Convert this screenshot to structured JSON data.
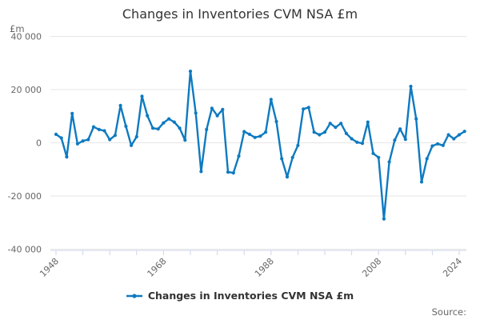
{
  "title": "Changes in Inventories CVM NSA £m",
  "y_axis": {
    "unit_label": "£m",
    "ticks": [
      {
        "value": 40000,
        "label": "40 000"
      },
      {
        "value": 20000,
        "label": "20 000"
      },
      {
        "value": 0,
        "label": "0"
      },
      {
        "value": -20000,
        "label": "-20 000"
      },
      {
        "value": -40000,
        "label": "-40 000"
      }
    ]
  },
  "x_axis": {
    "tick_years": [
      1948,
      1953,
      1958,
      1963,
      1968,
      1973,
      1978,
      1983,
      1988,
      1993,
      1998,
      2003,
      2008,
      2013,
      2018,
      2023
    ],
    "labels": [
      "1948",
      "1968",
      "1988",
      "2008",
      "2024"
    ]
  },
  "legend": {
    "label": "Changes in Inventories CVM NSA £m"
  },
  "source": {
    "label": "Source:"
  },
  "colors": {
    "line": "#0e7ac0",
    "grid": "#e6e6e6",
    "axis": "#ccd6eb",
    "text_muted": "#666666",
    "title_text": "#333333"
  },
  "chart_data": {
    "type": "line",
    "title": "Changes in Inventories CVM NSA £m",
    "ylabel": "£m",
    "ylim": [
      -40000,
      40000
    ],
    "y_tick_interval": 20000,
    "grid": "horizontal",
    "legend_position": "bottom",
    "frequency": "annual",
    "year_start": 1948,
    "year_end": 2024,
    "years": [
      1948,
      1949,
      1950,
      1951,
      1952,
      1953,
      1954,
      1955,
      1956,
      1957,
      1958,
      1959,
      1960,
      1961,
      1962,
      1963,
      1964,
      1965,
      1966,
      1967,
      1968,
      1969,
      1970,
      1971,
      1972,
      1973,
      1974,
      1975,
      1976,
      1977,
      1978,
      1979,
      1980,
      1981,
      1982,
      1983,
      1984,
      1985,
      1986,
      1987,
      1988,
      1989,
      1990,
      1991,
      1992,
      1993,
      1994,
      1995,
      1996,
      1997,
      1998,
      1999,
      2000,
      2001,
      2002,
      2003,
      2004,
      2005,
      2006,
      2007,
      2008,
      2009,
      2010,
      2011,
      2012,
      2013,
      2014,
      2015,
      2016,
      2017,
      2018,
      2019,
      2020,
      2021,
      2022,
      2023,
      2024
    ],
    "values": [
      3200,
      1800,
      -5300,
      11000,
      -400,
      700,
      1200,
      6000,
      5000,
      4500,
      1200,
      2800,
      14000,
      6200,
      -1000,
      2300,
      17500,
      10200,
      5500,
      5200,
      7500,
      9000,
      7800,
      5500,
      1000,
      26900,
      11200,
      -10800,
      5000,
      13000,
      10200,
      12500,
      -11000,
      -11300,
      -5000,
      4200,
      3200,
      2000,
      2500,
      4000,
      16300,
      8000,
      -6000,
      -12800,
      -5500,
      -1000,
      12700,
      13300,
      4000,
      3000,
      4000,
      7300,
      5800,
      7300,
      3500,
      1500,
      200,
      -200,
      7800,
      -4000,
      -5500,
      -28600,
      -7200,
      1000,
      5200,
      1300,
      21200,
      9000,
      -14700,
      -6000,
      -1200,
      -400,
      -1000,
      3000,
      1500,
      3000,
      4300
    ]
  }
}
